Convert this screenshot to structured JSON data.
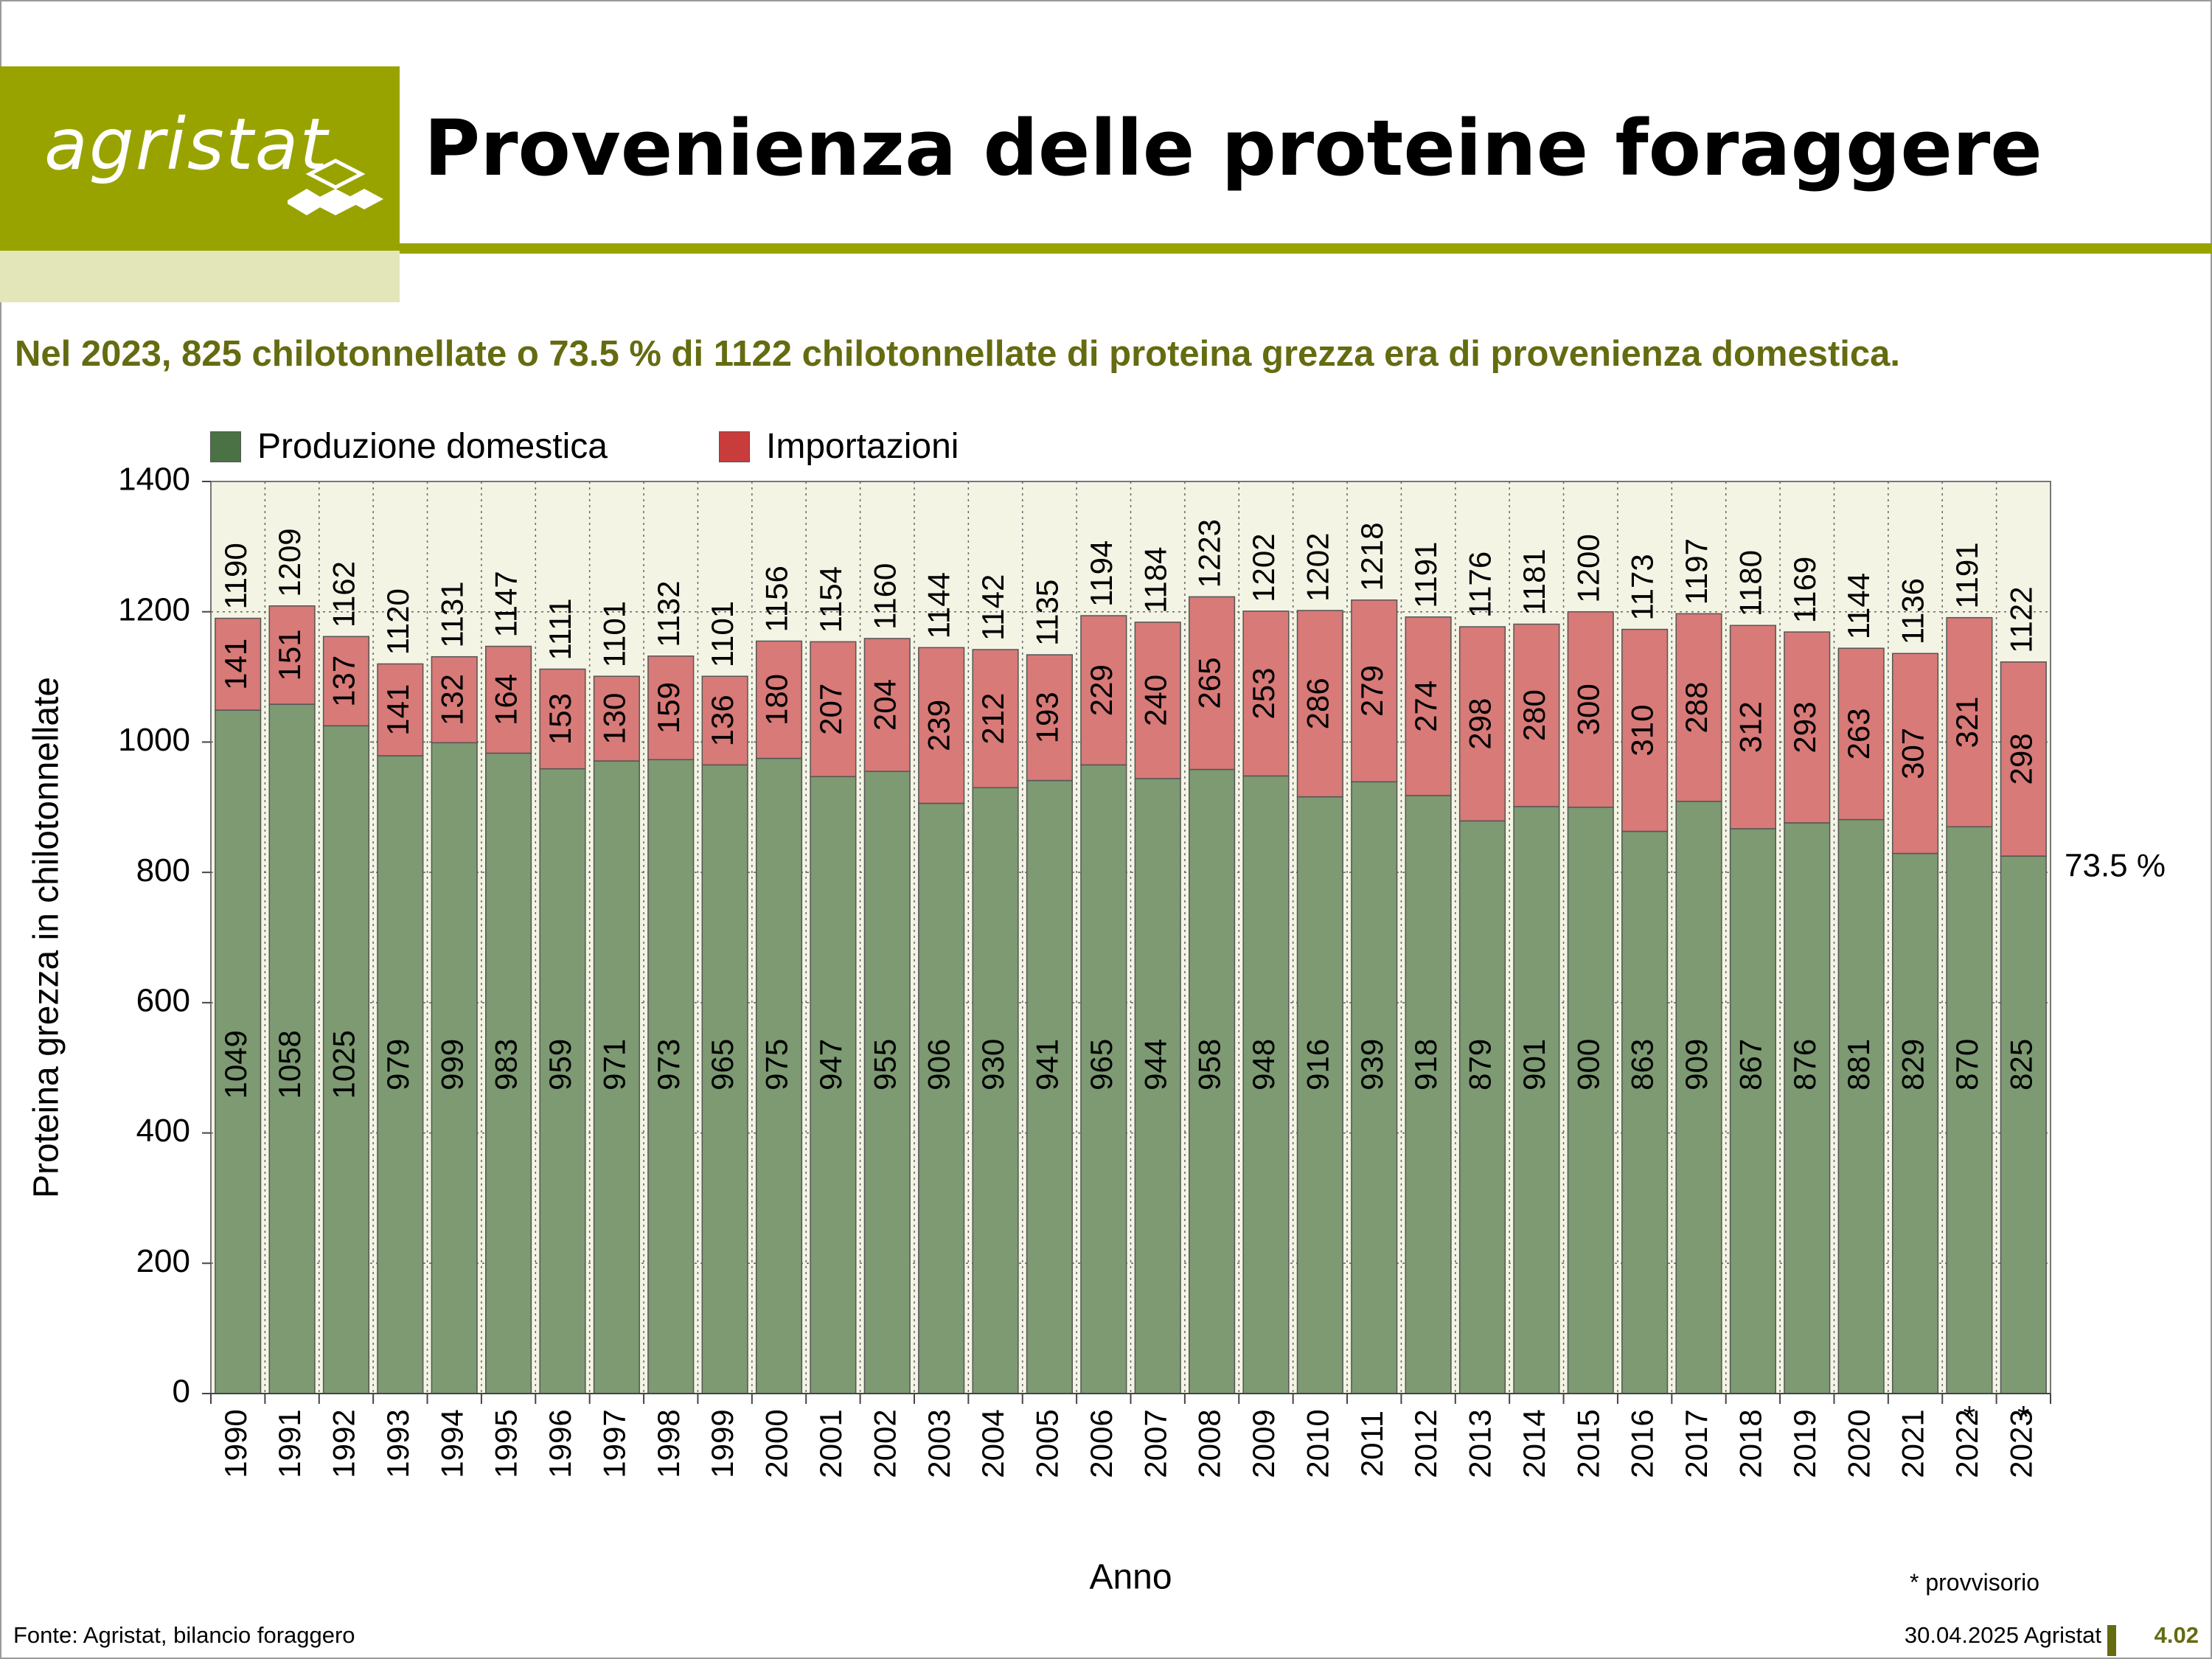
{
  "header": {
    "logo_text": "agristat",
    "title": "Provenienza delle proteine foraggere"
  },
  "subtitle": "Nel 2023, 825 chilotonnellate o 73.5 % di 1122 chilotonnellate di proteina grezza era di provenienza domestica.",
  "footer": {
    "source": "Fonte: Agristat, bilancio foraggero",
    "date": "30.04.2025 Agristat",
    "page": "4.02"
  },
  "colors": {
    "brand": "#99a300",
    "brand_dark": "#656b10",
    "domestic_legend": "#4b7245",
    "domestic_bar": "#7d9a72",
    "imports_legend": "#c83c3c",
    "imports_bar": "#d77a78",
    "plot_bg": "#f3f4e4"
  },
  "chart_data": {
    "type": "bar",
    "stacked": true,
    "xlabel": "Anno",
    "ylabel": "Proteina grezza in chilotonnellate",
    "ylim": [
      0,
      1400
    ],
    "yticks": [
      0,
      200,
      400,
      600,
      800,
      1000,
      1200,
      1400
    ],
    "legend_position": "top-left",
    "categories": [
      "1990",
      "1991",
      "1992",
      "1993",
      "1994",
      "1995",
      "1996",
      "1997",
      "1998",
      "1999",
      "2000",
      "2001",
      "2002",
      "2003",
      "2004",
      "2005",
      "2006",
      "2007",
      "2008",
      "2009",
      "2010",
      "2011",
      "2012",
      "2013",
      "2014",
      "2015",
      "2016",
      "2017",
      "2018",
      "2019",
      "2020",
      "2021",
      "2022 *",
      "2023 *"
    ],
    "series": [
      {
        "name": "Produzione domestica",
        "values": [
          1049,
          1058,
          1025,
          979,
          999,
          983,
          959,
          971,
          973,
          965,
          975,
          947,
          955,
          906,
          930,
          941,
          965,
          944,
          958,
          948,
          916,
          939,
          918,
          879,
          901,
          900,
          863,
          909,
          867,
          876,
          881,
          829,
          870,
          825
        ]
      },
      {
        "name": "Importazioni",
        "values": [
          141,
          151,
          137,
          141,
          132,
          164,
          153,
          130,
          159,
          136,
          180,
          207,
          204,
          239,
          212,
          193,
          229,
          240,
          265,
          253,
          286,
          279,
          274,
          298,
          280,
          300,
          310,
          288,
          312,
          293,
          263,
          307,
          321,
          298
        ]
      }
    ],
    "totals": [
      1190,
      1209,
      1162,
      1120,
      1131,
      1147,
      1111,
      1101,
      1132,
      1101,
      1156,
      1154,
      1160,
      1144,
      1142,
      1135,
      1194,
      1184,
      1223,
      1202,
      1202,
      1218,
      1191,
      1176,
      1181,
      1200,
      1173,
      1197,
      1180,
      1169,
      1144,
      1136,
      1191,
      1122
    ],
    "annotation": "73.5 %",
    "footnote": "* provvisorio"
  }
}
